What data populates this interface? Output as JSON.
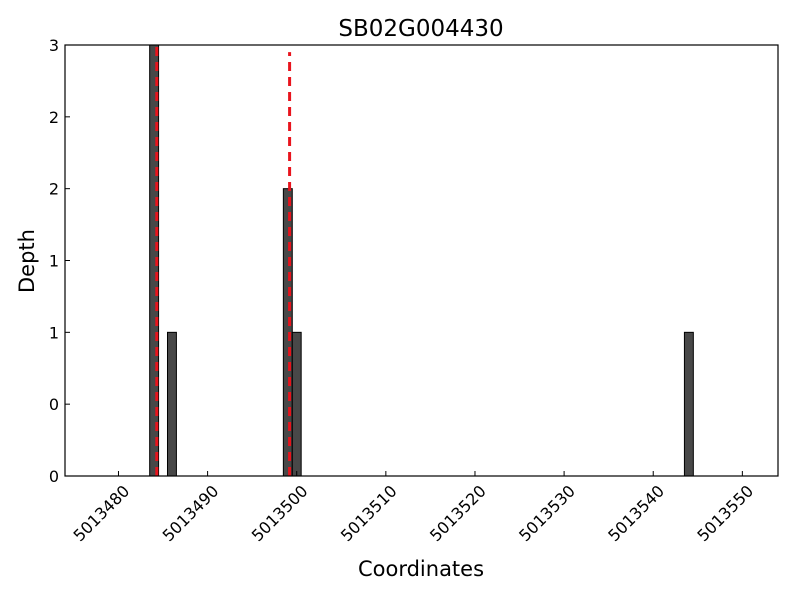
{
  "chart_data": {
    "type": "bar",
    "title": "SB02G004430",
    "xlabel": "Coordinates",
    "ylabel": "Depth",
    "xlim": [
      5013474,
      5013554
    ],
    "ylim": [
      0,
      3
    ],
    "bar_width": 1,
    "x_ticks": [
      5013480,
      5013490,
      5013500,
      5013510,
      5013520,
      5013530,
      5013540,
      5013550
    ],
    "x_tick_labels": [
      "5013480",
      "5013490",
      "5013500",
      "5013510",
      "5013520",
      "5013530",
      "5013540",
      "5013550"
    ],
    "y_ticks": [
      0,
      0.5,
      1,
      1.5,
      2,
      2.5,
      3
    ],
    "y_tick_labels": [
      "0",
      "0",
      "1",
      "1",
      "2",
      "2",
      "3"
    ],
    "bars": [
      {
        "x": 5013484,
        "value": 3
      },
      {
        "x": 5013486,
        "value": 1
      },
      {
        "x": 5013499,
        "value": 2
      },
      {
        "x": 5013500,
        "value": 1
      },
      {
        "x": 5013544,
        "value": 1
      }
    ],
    "vlines": [
      {
        "x": 5013484.3,
        "y_max": 3,
        "color": "#e8141d",
        "style": "dashed"
      },
      {
        "x": 5013499.2,
        "y_max": 2.95,
        "color": "#e8141d",
        "style": "dashed"
      }
    ],
    "bar_color": "#484848",
    "bar_edge": "#000000",
    "grid": false,
    "legend": "none"
  }
}
